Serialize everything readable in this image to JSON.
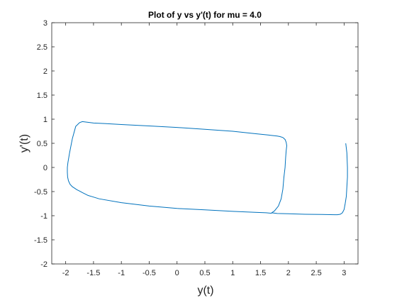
{
  "chart_data": {
    "type": "line",
    "title": "Plot of y vs y'(t) for mu = 4.0",
    "xlabel": "y(t)",
    "ylabel": "y'(t)",
    "xlim": [
      -2.25,
      3.25
    ],
    "ylim": [
      -2,
      3
    ],
    "xticks": [
      -2,
      -1.5,
      -1,
      -0.5,
      0,
      0.5,
      1,
      1.5,
      2,
      2.5,
      3
    ],
    "yticks": [
      -2,
      -1.5,
      -1,
      -0.5,
      0,
      0.5,
      1,
      1.5,
      2,
      2.5,
      3
    ],
    "grid": false,
    "line_color": "#0072BD",
    "series": [
      {
        "x": [
          3.03,
          3.05,
          3.06,
          3.06,
          3.05,
          3.04,
          3.02,
          3.0,
          2.97,
          2.93,
          2.88,
          2.83,
          2.6,
          2.3,
          2.0,
          1.8,
          1.7,
          1.75,
          1.82,
          1.87,
          1.9,
          1.92,
          1.94,
          1.95,
          1.96,
          1.965,
          1.97,
          1.96,
          1.94,
          1.9,
          1.85,
          1.8,
          1.65,
          1.4,
          1.0,
          0.5,
          0.0,
          -0.5,
          -1.0,
          -1.3,
          -1.5,
          -1.6,
          -1.7,
          -1.75,
          -1.82,
          -1.88,
          -1.93,
          -1.96,
          -1.97,
          -1.97,
          -1.965,
          -1.95,
          -1.92,
          -1.88,
          -1.84,
          -1.8,
          -1.75,
          -1.7,
          -1.6,
          -1.4,
          -1.0,
          -0.5,
          0.0,
          0.5,
          1.0,
          1.4,
          1.6,
          1.7
        ],
        "y": [
          0.5,
          0.3,
          0.0,
          -0.2,
          -0.4,
          -0.6,
          -0.75,
          -0.87,
          -0.94,
          -0.97,
          -0.98,
          -0.98,
          -0.975,
          -0.97,
          -0.96,
          -0.955,
          -0.94,
          -0.9,
          -0.8,
          -0.65,
          -0.45,
          -0.2,
          0.0,
          0.2,
          0.35,
          0.4,
          0.45,
          0.52,
          0.58,
          0.62,
          0.64,
          0.65,
          0.67,
          0.7,
          0.75,
          0.79,
          0.83,
          0.86,
          0.89,
          0.91,
          0.92,
          0.935,
          0.95,
          0.93,
          0.85,
          0.6,
          0.3,
          0.1,
          0.0,
          -0.1,
          -0.2,
          -0.28,
          -0.35,
          -0.4,
          -0.43,
          -0.46,
          -0.49,
          -0.52,
          -0.58,
          -0.65,
          -0.73,
          -0.8,
          -0.85,
          -0.88,
          -0.91,
          -0.93,
          -0.94,
          -0.95
        ]
      }
    ]
  }
}
